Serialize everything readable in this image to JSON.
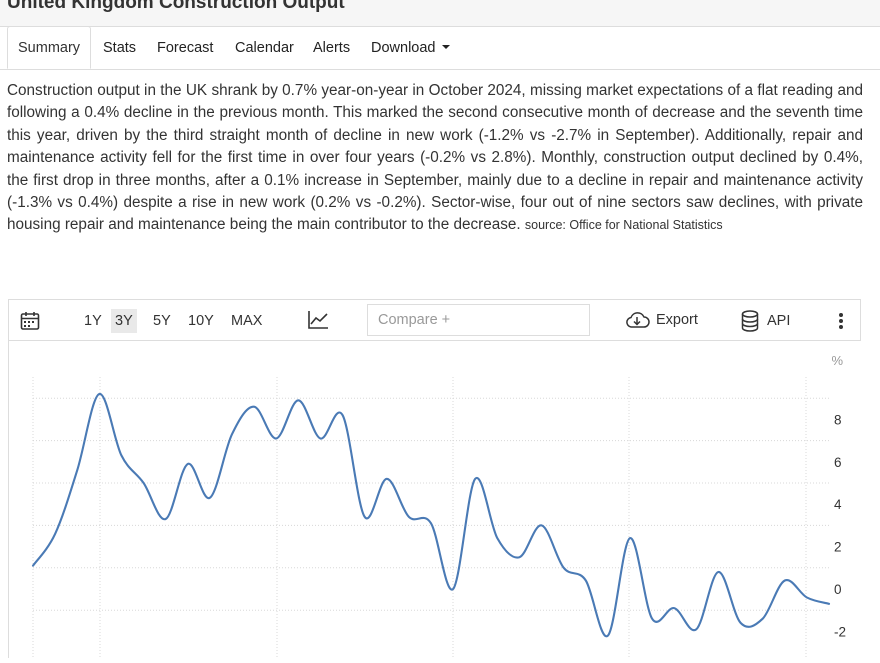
{
  "page": {
    "title": "United Kingdom Construction Output"
  },
  "tabs": [
    {
      "label": "Summary"
    },
    {
      "label": "Stats"
    },
    {
      "label": "Forecast"
    },
    {
      "label": "Calendar"
    },
    {
      "label": "Alerts"
    },
    {
      "label": "Download"
    }
  ],
  "summary": {
    "text": "Construction output in the UK shrank by 0.7% year-on-year in October 2024, missing market expectations of a flat reading and following a 0.4% decline in the previous month. This marked the second consecutive month of decrease and the seventh time this year, driven by the third straight month of decline in new work (-1.2% vs -2.7% in September). Additionally, repair and maintenance activity fell for the first time in over four years (-0.2% vs 2.8%). Monthly, construction output declined by 0.4%, the first drop in three months, after a 0.1% increase in September, mainly due to a decline in repair and maintenance activity (-1.3% vs 0.4%) despite a rise in new work (0.2% vs -0.2%). Sector-wise, four out of nine sectors saw declines, with private housing repair and maintenance being the main contributor to the decrease.",
    "source": "source: Office for National Statistics"
  },
  "toolbar": {
    "ranges": [
      "1Y",
      "3Y",
      "5Y",
      "10Y",
      "MAX"
    ],
    "active_range": "3Y",
    "compare_placeholder": "Compare +",
    "export_label": "Export",
    "api_label": "API"
  },
  "colors": {
    "line": "#4a7ab5",
    "grid": "#d8d8d8",
    "active_range_bg": "#e9e9e9"
  },
  "chart_data": {
    "type": "line",
    "ylabel": "%",
    "ylim": [
      -2.6,
      10.4
    ],
    "yticks": [
      8,
      6,
      4,
      2,
      0,
      -2
    ],
    "series": [
      {
        "values": [
          1.1,
          2.6,
          5.6,
          9.2,
          6.3,
          5.0,
          3.3,
          5.9,
          4.3,
          7.3,
          8.6,
          7.1,
          8.9,
          7.1,
          8.2,
          3.4,
          5.2,
          3.4,
          3.1,
          0.0,
          5.2,
          2.4,
          1.5,
          3.0,
          1.0,
          0.4,
          -2.2,
          2.4,
          -1.4,
          -0.9,
          -1.9,
          0.8,
          -1.6,
          -1.4,
          0.4,
          -0.4,
          -0.7
        ]
      }
    ]
  }
}
